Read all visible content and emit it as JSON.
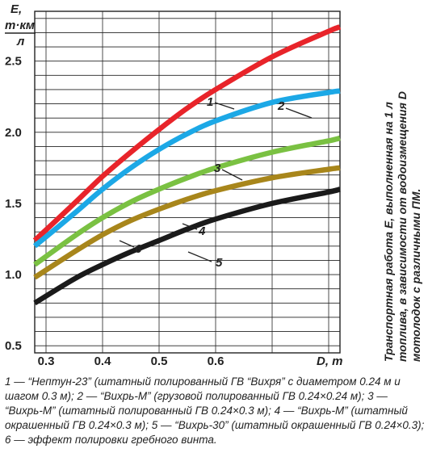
{
  "chart_data": {
    "type": "line",
    "ylabel_lines": [
      "E,",
      "т·км",
      "л"
    ],
    "xlabel": "D, т",
    "xlim": [
      0.28,
      0.82
    ],
    "ylim": [
      0.45,
      2.85
    ],
    "xticks": [
      "0.3",
      "0.4",
      "0.5",
      "0.6"
    ],
    "yticks": [
      "0.5",
      "1.0",
      "1.5",
      "2.0",
      "2.5"
    ],
    "ytick_values": [
      0.5,
      1.0,
      1.5,
      2.0,
      2.5
    ],
    "xtick_values": [
      0.3,
      0.4,
      0.5,
      0.6
    ],
    "grid": true,
    "white_band_between": [
      "3",
      "4"
    ],
    "series": [
      {
        "name": "1",
        "color": "#e8242a",
        "x": [
          0.28,
          0.35,
          0.4,
          0.45,
          0.5,
          0.55,
          0.6,
          0.7,
          0.8,
          0.82
        ],
        "y": [
          1.24,
          1.5,
          1.69,
          1.86,
          2.02,
          2.17,
          2.3,
          2.53,
          2.71,
          2.74
        ]
      },
      {
        "name": "2",
        "color": "#1ca8e6",
        "x": [
          0.28,
          0.35,
          0.4,
          0.45,
          0.5,
          0.55,
          0.6,
          0.7,
          0.8,
          0.82
        ],
        "y": [
          1.2,
          1.43,
          1.6,
          1.75,
          1.88,
          1.99,
          2.08,
          2.21,
          2.28,
          2.29
        ]
      },
      {
        "name": "3",
        "color": "#7ac142",
        "x": [
          0.28,
          0.35,
          0.4,
          0.45,
          0.5,
          0.55,
          0.6,
          0.7,
          0.8,
          0.82
        ],
        "y": [
          1.07,
          1.27,
          1.4,
          1.51,
          1.6,
          1.68,
          1.75,
          1.86,
          1.94,
          1.96
        ]
      },
      {
        "name": "4",
        "color": "#a8861b",
        "x": [
          0.28,
          0.35,
          0.4,
          0.45,
          0.5,
          0.55,
          0.6,
          0.7,
          0.8,
          0.82
        ],
        "y": [
          0.98,
          1.16,
          1.28,
          1.38,
          1.46,
          1.53,
          1.59,
          1.68,
          1.74,
          1.75
        ]
      },
      {
        "name": "5",
        "color": "#1a1a1a",
        "x": [
          0.28,
          0.35,
          0.4,
          0.45,
          0.5,
          0.55,
          0.6,
          0.7,
          0.8,
          0.82
        ],
        "y": [
          0.8,
          0.97,
          1.07,
          1.16,
          1.24,
          1.32,
          1.39,
          1.5,
          1.58,
          1.6
        ]
      }
    ],
    "annotations": [
      "1",
      "2",
      "3",
      "4",
      "5",
      "6"
    ],
    "side_caption_lines": [
      "Транспортная работа E, выполненная на 1 л",
      "топлива, в зависимости от водоизмещения D",
      "мотолодок с различными ПМ."
    ]
  },
  "caption": "1 — “Нептун-23” (штатный полированный ГВ “Вихря” с диаметром 0.24 м и шагом 0.3 м); 2 — “Вихрь-М” (грузовой полированный ГВ 0.24×0.24 м); 3 — “Вихрь-М” (штатный полированный ГВ 0.24×0.3 м); 4 — “Вихрь-М” (штатный окрашенный ГВ 0.24×0.3 м); 5 — “Вихрь-30” (штатный окрашенный ГВ 0.24×0.3); 6 — эффект полировки гребного винта."
}
